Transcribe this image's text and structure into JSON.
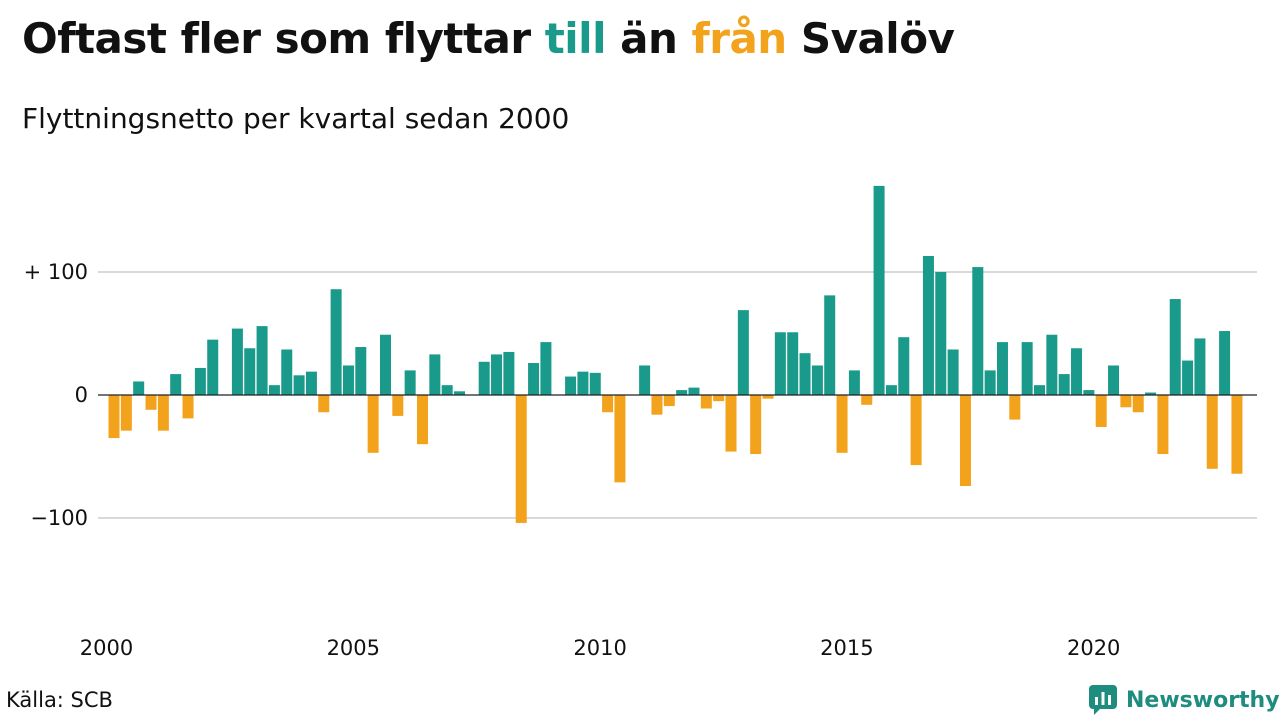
{
  "header": {
    "title_parts": [
      "Oftast fler som flyttar ",
      "till",
      " än ",
      "från",
      " Svalöv"
    ],
    "subtitle": "Flyttningsnetto per kvartal sedan 2000"
  },
  "footer": {
    "source": "Källa: SCB",
    "brand": "Newsworthy",
    "brand_icon": "newsworthy-chart-logo-icon"
  },
  "colors": {
    "positive": "#1a9a8a",
    "negative": "#f3a21c",
    "grid": "#d9d9d9",
    "zero_line": "#222222",
    "brand": "#1e8c7e"
  },
  "chart_data": {
    "type": "bar",
    "title": "Oftast fler som flyttar till än från Svalöv",
    "subtitle": "Flyttningsnetto per kvartal sedan 2000",
    "x_start": "2000Q1",
    "ylim": [
      -160,
      180
    ],
    "y_ticks": [
      {
        "value": 100,
        "label": "+ 100"
      },
      {
        "value": 0,
        "label": "0"
      },
      {
        "value": -100,
        "label": "−100"
      }
    ],
    "x_ticks": [
      {
        "year": 2000,
        "label": "2000"
      },
      {
        "year": 2005,
        "label": "2005"
      },
      {
        "year": 2010,
        "label": "2010"
      },
      {
        "year": 2015,
        "label": "2015"
      },
      {
        "year": 2020,
        "label": "2020"
      }
    ],
    "grid": true,
    "values": [
      -35,
      -29,
      11,
      -12,
      -29,
      17,
      -19,
      22,
      45,
      0,
      54,
      38,
      56,
      8,
      37,
      16,
      19,
      -14,
      86,
      24,
      39,
      -47,
      49,
      -17,
      20,
      -40,
      33,
      8,
      3,
      0,
      27,
      33,
      35,
      -104,
      26,
      43,
      0,
      15,
      19,
      18,
      -14,
      -71,
      0,
      24,
      -16,
      -9,
      4,
      6,
      -11,
      -5,
      -46,
      69,
      -48,
      -3,
      51,
      51,
      34,
      24,
      81,
      -47,
      20,
      -8,
      170,
      8,
      47,
      -57,
      113,
      100,
      37,
      -74,
      104,
      20,
      43,
      -20,
      43,
      8,
      49,
      17,
      38,
      4,
      -26,
      24,
      -10,
      -14,
      2,
      -48,
      78,
      28,
      46,
      -60,
      52,
      -64
    ]
  }
}
